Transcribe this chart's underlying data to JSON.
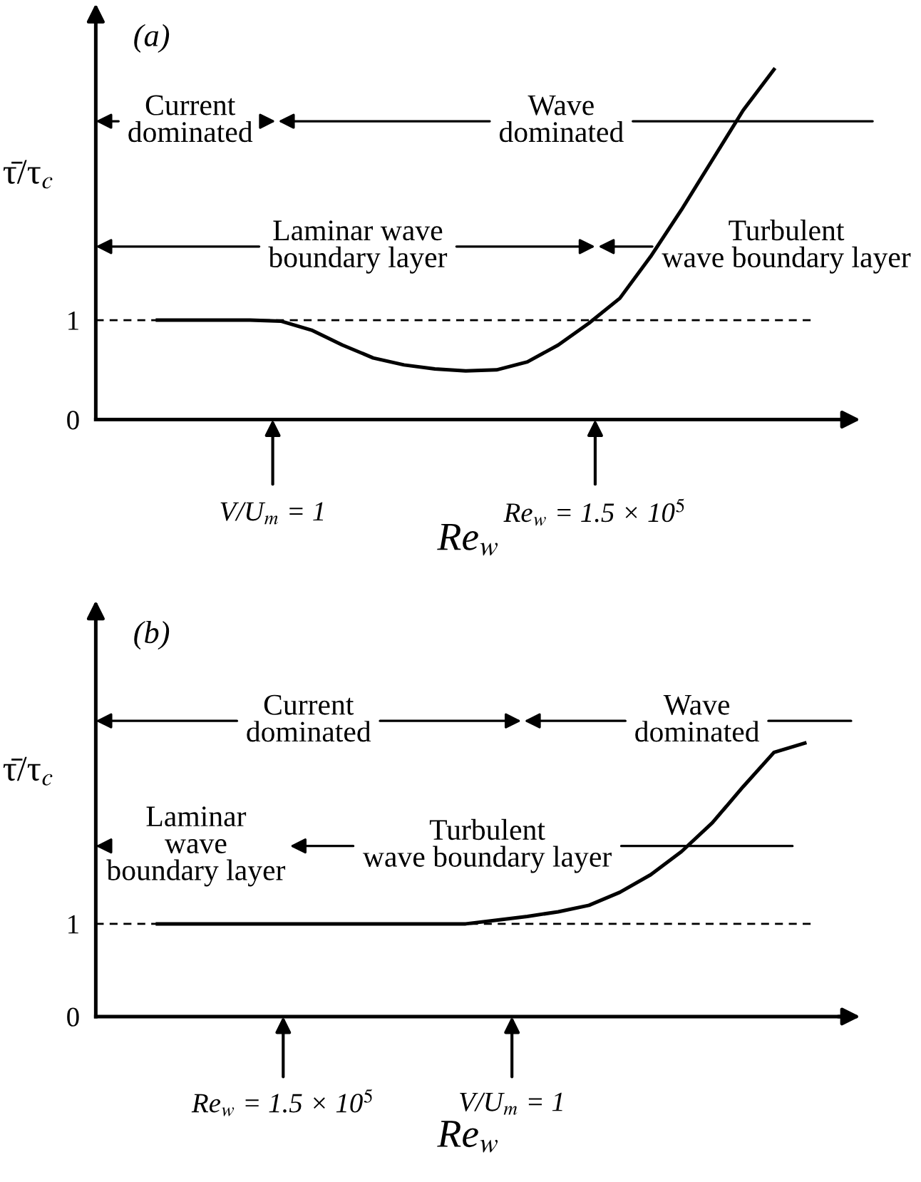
{
  "chart_data": [
    {
      "type": "line",
      "title": "(a)",
      "xlabel": "Re$_{w}$",
      "ylabel": "τ̄/τ$_{c}$",
      "relative": false,
      "categories": [
        null,
        null,
        null,
        null,
        null,
        null,
        null,
        null,
        null,
        null,
        null,
        null,
        null,
        null,
        null,
        null,
        null,
        null,
        null,
        null,
        null,
        null,
        null,
        null
      ],
      "series": [
        {
          "color": "#000000",
          "values": [
            null,
            null,
            1.0,
            1.0,
            1.0,
            1.0,
            0.99,
            0.9,
            0.75,
            0.62,
            0.55,
            0.51,
            0.49,
            0.5,
            0.58,
            0.75,
            0.97,
            1.22,
            1.64,
            2.11,
            2.61,
            3.11,
            3.52,
            null
          ]
        }
      ],
      "ylim": [
        0,
        4.1
      ],
      "yticks": [
        {
          "value": 0,
          "label": "0"
        },
        1
      ],
      "tick_labels": "y",
      "grid": false,
      "legend": false,
      "ref_lines": [
        {
          "axis": "y",
          "value": 1,
          "color": "#000000",
          "line_style": "dashed"
        }
      ],
      "annotations": [
        "Current\ndominated",
        "Wave\ndominated",
        "Laminar wave\nboundary layer",
        "Turbulent\nwave boundary layer",
        "V/U$_{m}$ = 1",
        "Re$_{w}$ = 1.5 × 10$^{5}$"
      ]
    },
    {
      "type": "line",
      "title": "(b)",
      "xlabel": "Re$_{w}$",
      "ylabel": "τ̄/τ$_{c}$",
      "categories": [
        null,
        null,
        null,
        null,
        null,
        null,
        null,
        null,
        null,
        null,
        null,
        null,
        null,
        null,
        null,
        null,
        null,
        null,
        null,
        null,
        null,
        null,
        null,
        null
      ],
      "series": [
        {
          "color": "#000000",
          "values": [
            null,
            null,
            1.0,
            1.0,
            1.0,
            1.0,
            1.0,
            1.0,
            1.0,
            1.0,
            1.0,
            1.0,
            1.0,
            1.04,
            1.08,
            1.13,
            1.2,
            1.34,
            1.53,
            1.78,
            2.09,
            2.48,
            2.85,
            2.95
          ]
        }
      ],
      "ylim": [
        0,
        4.4
      ],
      "yticks": [
        {
          "value": 0,
          "label": "0"
        },
        1
      ],
      "tick_labels": "y",
      "grid": false,
      "legend": false,
      "ref_lines": [
        {
          "axis": "y",
          "value": 1,
          "color": "#000000",
          "line_style": "dashed"
        }
      ],
      "annotations": [
        "Current\ndominated",
        "Wave\ndominated",
        "Laminar\nwave\nboundary layer",
        "Turbulent\nwave boundary layer",
        "Re$_{w}$ = 1.5 × 10$^{5}$",
        "V/U$_{m}$ = 1"
      ]
    }
  ]
}
